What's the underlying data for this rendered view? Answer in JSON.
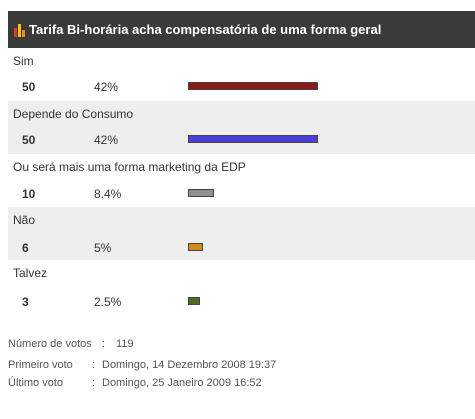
{
  "poll": {
    "title": "Tarifa Bi-horária acha compensatória de uma forma geral",
    "options": [
      {
        "label": "Sim",
        "votes": "50",
        "percent": "42%",
        "share": 0.42,
        "color": "#8b1a1a"
      },
      {
        "label": "Depende do Consumo",
        "votes": "50",
        "percent": "42%",
        "share": 0.42,
        "color": "#4b3fd6"
      },
      {
        "label": "Ou será mais uma forma marketing da EDP",
        "votes": "10",
        "percent": "8.4%",
        "share": 0.084,
        "color": "#8f8f8f"
      },
      {
        "label": "Não",
        "votes": "6",
        "percent": "5%",
        "share": 0.05,
        "color": "#d08c1a"
      },
      {
        "label": "Talvez",
        "votes": "3",
        "percent": "2.5%",
        "share": 0.025,
        "color": "#4a6e1f"
      }
    ]
  },
  "stats": {
    "total_label": "Número de votos",
    "total_value": "119",
    "first_label": "Primeiro voto",
    "first_value": "Domingo, 14 Dezembro 2008 19:37",
    "last_label": "Último voto",
    "last_value": "Domingo, 25 Janeiro 2009 16:52"
  }
}
